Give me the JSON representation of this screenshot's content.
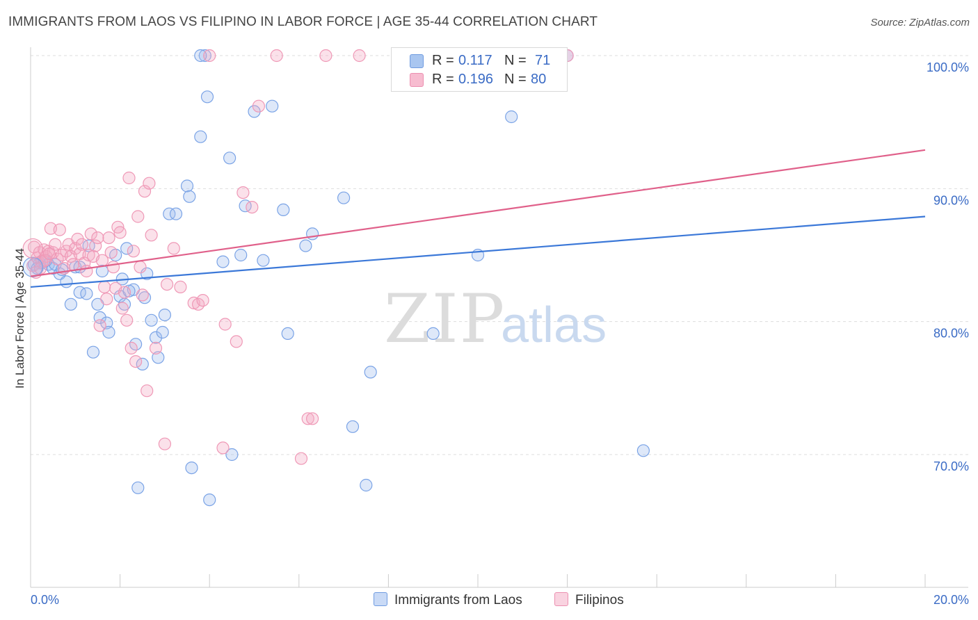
{
  "title": "IMMIGRANTS FROM LAOS VS FILIPINO IN LABOR FORCE | AGE 35-44 CORRELATION CHART",
  "source": "Source: ZipAtlas.com",
  "watermark": {
    "zip": "ZIP",
    "atlas": "atlas"
  },
  "legend_stats": [
    {
      "r_label": "R =",
      "r_value": "0.117",
      "n_label": "N =",
      "n_value": "71",
      "color": "#a9c6f0",
      "border": "#6f9be0"
    },
    {
      "r_label": "R =",
      "r_value": "0.196",
      "n_label": "N =",
      "n_value": "80",
      "color": "#f7bcd0",
      "border": "#ec8fb0"
    }
  ],
  "bottom_legend": [
    {
      "label": "Immigrants from Laos",
      "color": "#c9daf6",
      "border": "#6f9be0"
    },
    {
      "label": "Filipinos",
      "color": "#f9d3e0",
      "border": "#ec8fb0"
    }
  ],
  "chart_data": {
    "type": "scatter",
    "title": "IMMIGRANTS FROM LAOS VS FILIPINO IN LABOR FORCE | AGE 35-44 CORRELATION CHART",
    "xlabel": "",
    "ylabel": "In Labor Force | Age 35-44",
    "xlim": [
      0,
      20
    ],
    "ylim": [
      60,
      101.5
    ],
    "x_tick_labels": [
      "0.0%",
      "20.0%"
    ],
    "y_ticks": [
      70,
      80,
      90,
      100
    ],
    "y_tick_labels": [
      "70.0%",
      "80.0%",
      "90.0%",
      "100.0%"
    ],
    "grid": true,
    "series": [
      {
        "name": "Immigrants from Laos",
        "color": "#3b78d8",
        "fill": "rgba(160,190,238,0.35)",
        "stroke": "#7aa3e6",
        "trend": {
          "x": [
            0,
            20
          ],
          "y": [
            82.6,
            87.9
          ]
        },
        "points": [
          [
            0.08,
            84.3
          ],
          [
            0.2,
            84.4
          ],
          [
            0.3,
            84.5
          ],
          [
            0.4,
            84.3
          ],
          [
            0.5,
            84.0
          ],
          [
            0.65,
            83.6
          ],
          [
            0.8,
            83.0
          ],
          [
            0.9,
            81.3
          ],
          [
            1.0,
            84.1
          ],
          [
            1.1,
            82.2
          ],
          [
            1.3,
            85.7
          ],
          [
            1.4,
            77.7
          ],
          [
            1.5,
            81.3
          ],
          [
            1.55,
            80.3
          ],
          [
            1.6,
            83.8
          ],
          [
            1.7,
            79.9
          ],
          [
            1.75,
            79.2
          ],
          [
            1.9,
            85.0
          ],
          [
            2.0,
            81.9
          ],
          [
            2.05,
            83.2
          ],
          [
            2.1,
            81.3
          ],
          [
            2.15,
            85.5
          ],
          [
            2.3,
            82.4
          ],
          [
            2.35,
            78.3
          ],
          [
            2.4,
            67.5
          ],
          [
            2.5,
            76.8
          ],
          [
            2.55,
            81.8
          ],
          [
            2.6,
            83.6
          ],
          [
            2.7,
            80.1
          ],
          [
            2.8,
            78.8
          ],
          [
            2.85,
            77.3
          ],
          [
            2.95,
            79.2
          ],
          [
            3.0,
            80.5
          ],
          [
            3.1,
            88.1
          ],
          [
            3.25,
            88.1
          ],
          [
            3.5,
            90.2
          ],
          [
            3.55,
            89.4
          ],
          [
            3.6,
            69.0
          ],
          [
            3.8,
            93.9
          ],
          [
            3.95,
            96.9
          ],
          [
            4.0,
            66.6
          ],
          [
            4.3,
            84.5
          ],
          [
            4.45,
            92.3
          ],
          [
            4.5,
            70.0
          ],
          [
            4.7,
            85.0
          ],
          [
            4.8,
            88.7
          ],
          [
            5.0,
            95.8
          ],
          [
            5.2,
            84.6
          ],
          [
            5.4,
            96.2
          ],
          [
            5.65,
            88.4
          ],
          [
            5.75,
            79.1
          ],
          [
            6.15,
            85.7
          ],
          [
            6.3,
            86.6
          ],
          [
            7.0,
            89.3
          ],
          [
            7.2,
            72.1
          ],
          [
            7.5,
            67.7
          ],
          [
            7.6,
            76.2
          ],
          [
            9.0,
            79.1
          ],
          [
            10.0,
            85.0
          ],
          [
            10.75,
            95.4
          ],
          [
            12.0,
            100.0
          ],
          [
            13.7,
            70.3
          ],
          [
            3.9,
            100.0
          ],
          [
            3.8,
            100.0
          ],
          [
            1.1,
            84.1
          ],
          [
            0.35,
            84.6
          ],
          [
            0.55,
            84.3
          ],
          [
            1.25,
            82.1
          ],
          [
            0.15,
            84.0
          ],
          [
            2.2,
            82.3
          ],
          [
            0.7,
            83.9
          ]
        ]
      },
      {
        "name": "Filipinos",
        "color": "#e0608a",
        "fill": "rgba(244,170,196,0.35)",
        "stroke": "#ef98b6",
        "trend": {
          "x": [
            0,
            20
          ],
          "y": [
            83.4,
            92.9
          ]
        },
        "points": [
          [
            0.05,
            84.2
          ],
          [
            0.08,
            85.6
          ],
          [
            0.15,
            84.8
          ],
          [
            0.2,
            85.2
          ],
          [
            0.25,
            84.5
          ],
          [
            0.3,
            85.4
          ],
          [
            0.35,
            84.9
          ],
          [
            0.4,
            85.3
          ],
          [
            0.45,
            87.0
          ],
          [
            0.5,
            85.2
          ],
          [
            0.55,
            85.8
          ],
          [
            0.6,
            84.7
          ],
          [
            0.65,
            86.9
          ],
          [
            0.7,
            85.0
          ],
          [
            0.75,
            84.0
          ],
          [
            0.8,
            85.3
          ],
          [
            0.85,
            85.8
          ],
          [
            0.9,
            84.9
          ],
          [
            0.95,
            84.3
          ],
          [
            1.0,
            85.5
          ],
          [
            1.05,
            86.2
          ],
          [
            1.1,
            85.1
          ],
          [
            1.15,
            85.8
          ],
          [
            1.2,
            84.4
          ],
          [
            1.25,
            83.8
          ],
          [
            1.3,
            85.0
          ],
          [
            1.35,
            86.6
          ],
          [
            1.4,
            84.9
          ],
          [
            1.45,
            85.7
          ],
          [
            1.5,
            86.3
          ],
          [
            1.55,
            79.7
          ],
          [
            1.6,
            84.6
          ],
          [
            1.65,
            82.6
          ],
          [
            1.7,
            81.7
          ],
          [
            1.75,
            86.3
          ],
          [
            1.8,
            85.2
          ],
          [
            1.85,
            84.1
          ],
          [
            1.9,
            82.5
          ],
          [
            1.95,
            87.1
          ],
          [
            2.0,
            86.7
          ],
          [
            2.05,
            81.0
          ],
          [
            2.1,
            82.2
          ],
          [
            2.15,
            80.1
          ],
          [
            2.2,
            90.8
          ],
          [
            2.25,
            78.0
          ],
          [
            2.3,
            85.3
          ],
          [
            2.35,
            77.0
          ],
          [
            2.4,
            87.9
          ],
          [
            2.45,
            84.1
          ],
          [
            2.5,
            82.0
          ],
          [
            2.55,
            89.8
          ],
          [
            2.6,
            74.8
          ],
          [
            2.65,
            90.4
          ],
          [
            2.7,
            86.5
          ],
          [
            2.8,
            78.0
          ],
          [
            3.0,
            70.8
          ],
          [
            3.05,
            82.8
          ],
          [
            3.2,
            85.5
          ],
          [
            3.35,
            82.6
          ],
          [
            3.65,
            81.4
          ],
          [
            3.75,
            81.3
          ],
          [
            3.85,
            81.6
          ],
          [
            4.0,
            100.0
          ],
          [
            4.3,
            70.5
          ],
          [
            4.35,
            79.8
          ],
          [
            4.6,
            78.5
          ],
          [
            4.75,
            89.7
          ],
          [
            4.95,
            88.6
          ],
          [
            5.1,
            96.2
          ],
          [
            5.5,
            100.0
          ],
          [
            6.05,
            69.7
          ],
          [
            6.2,
            72.7
          ],
          [
            6.3,
            72.7
          ],
          [
            6.6,
            100.0
          ],
          [
            7.35,
            100.0
          ],
          [
            12.0,
            100.0
          ],
          [
            0.12,
            83.7
          ],
          [
            0.22,
            84.0
          ],
          [
            0.32,
            84.6
          ],
          [
            0.42,
            85.1
          ]
        ]
      }
    ]
  }
}
